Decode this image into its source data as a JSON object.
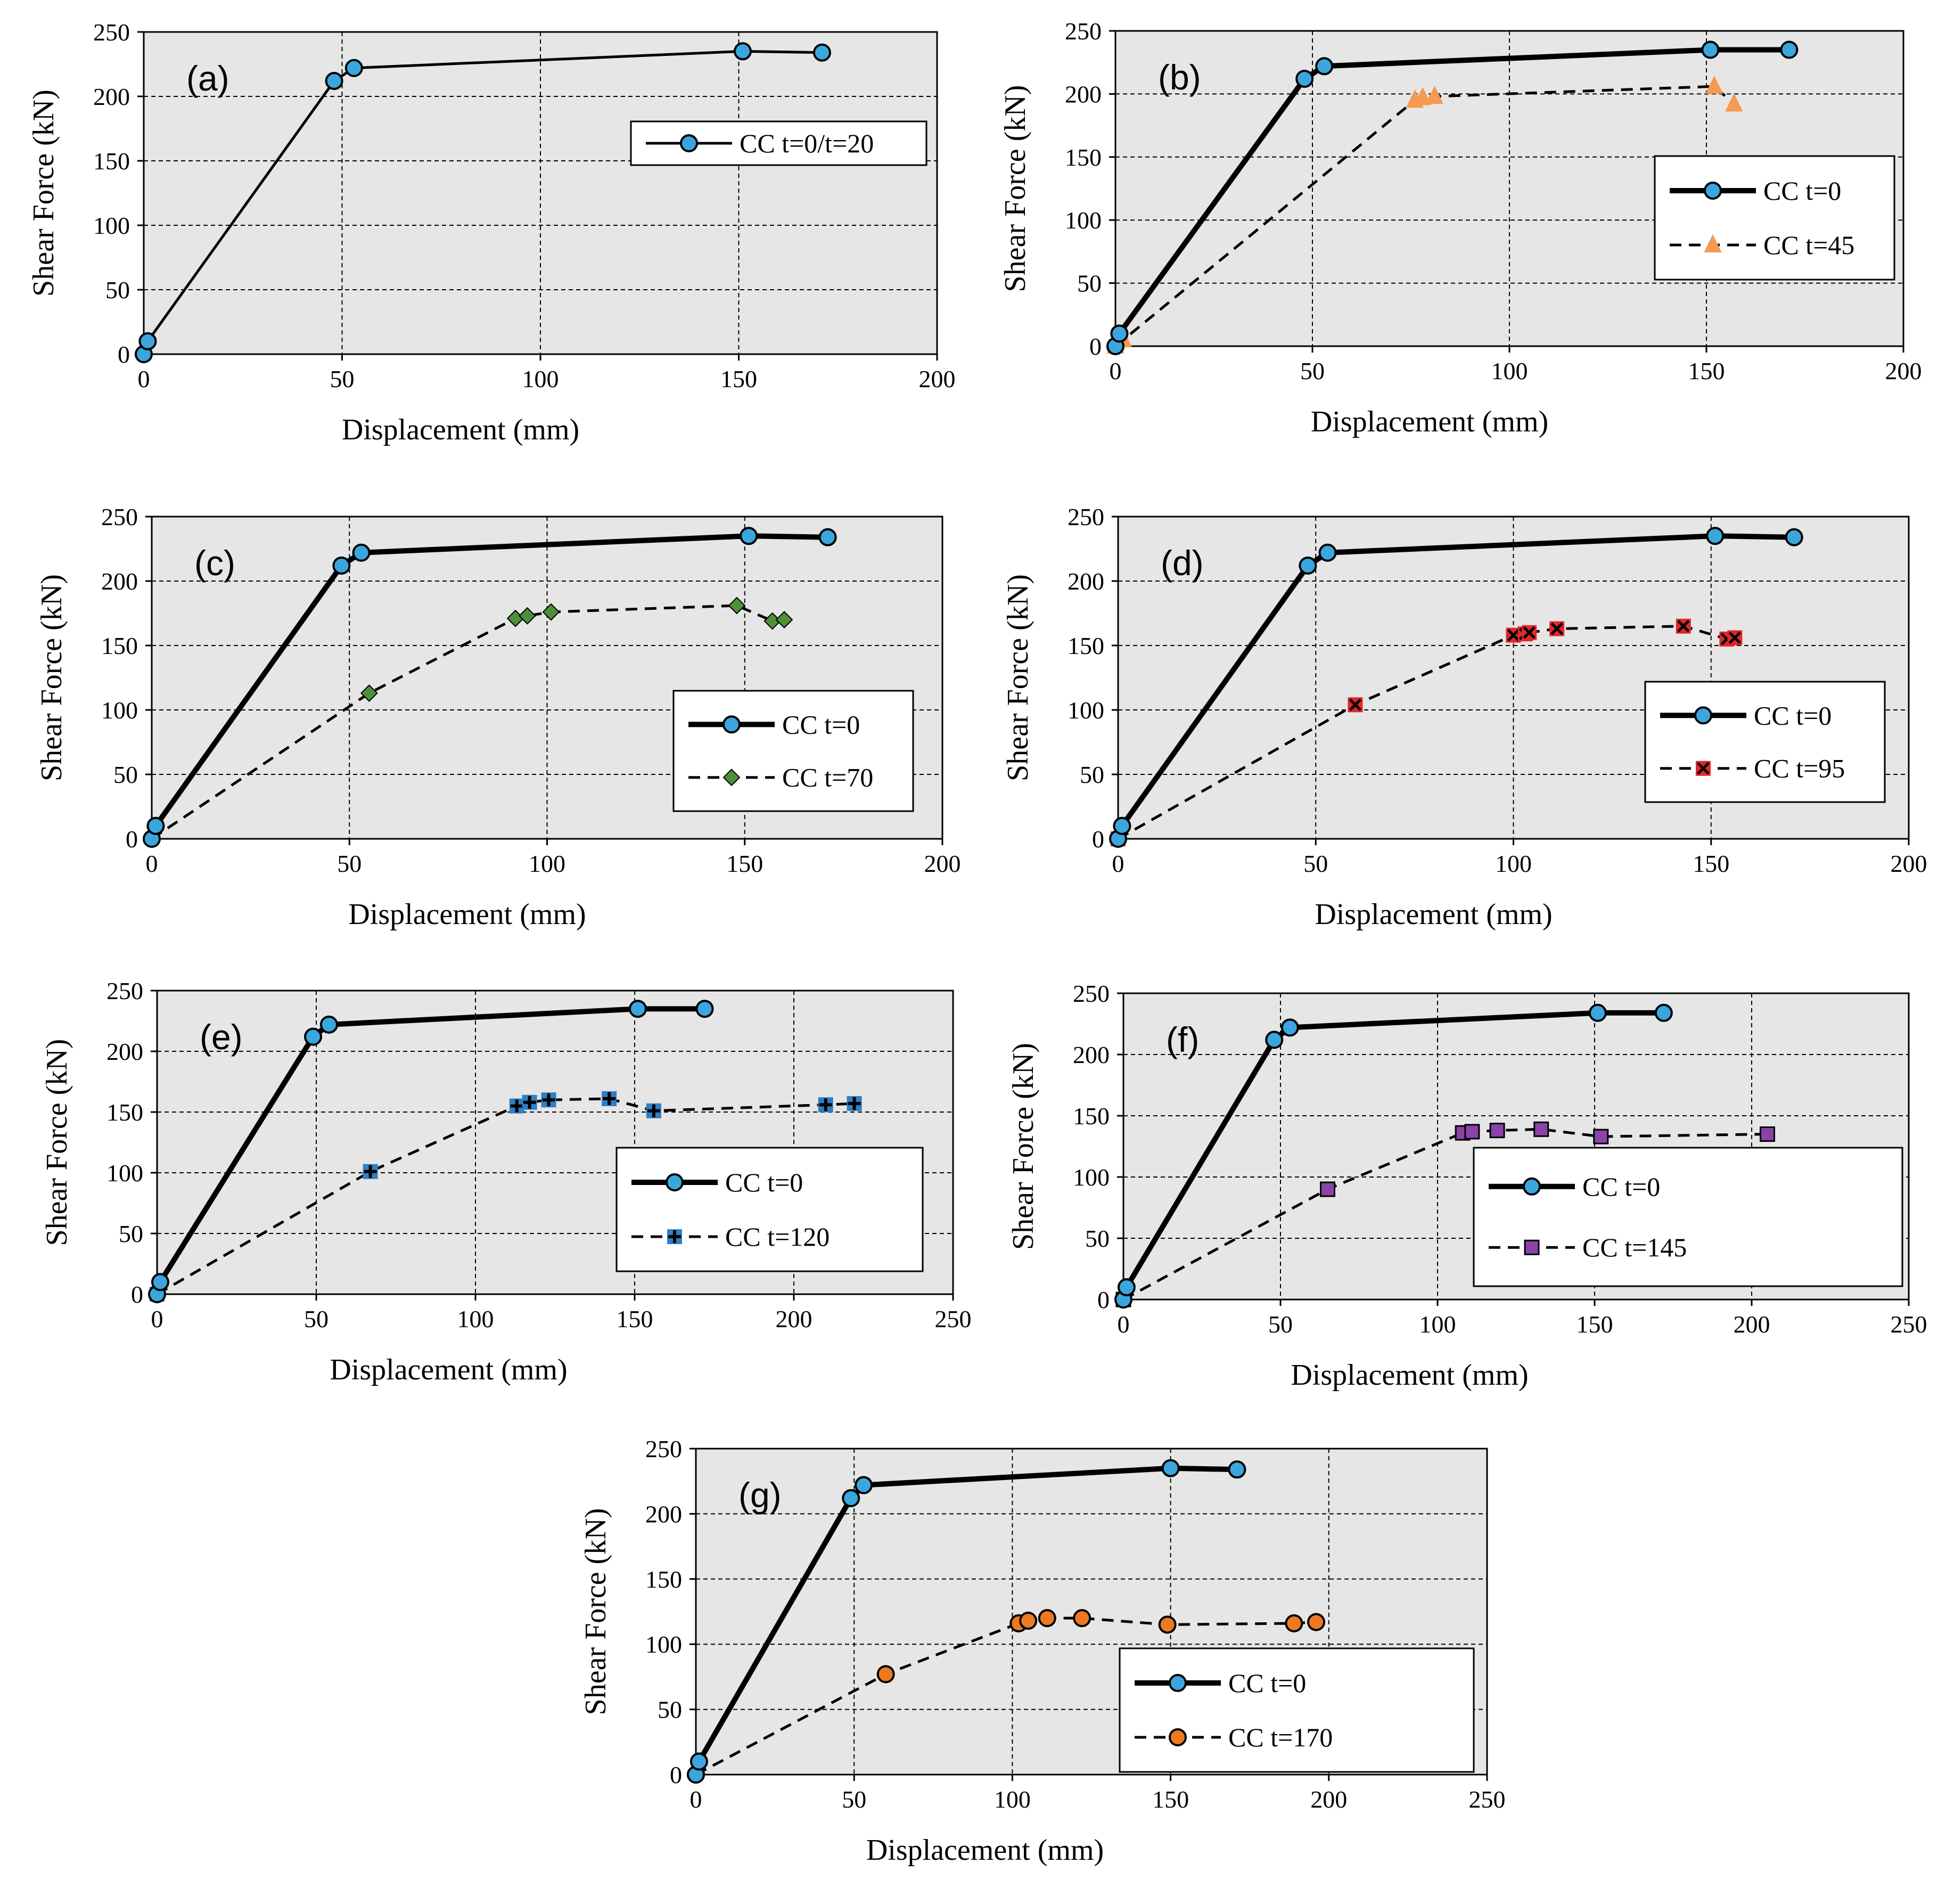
{
  "colors": {
    "plot_bg": "#e6e6e6",
    "grid": "#000000",
    "series_ref": "#000000",
    "marker_blue": "#3aa6dd",
    "triangle_orange": "#f59a50",
    "diamond_green": "#4e8f3a",
    "square_red": "#e3262b",
    "plus_blue": "#2f7fc4",
    "square_purple": "#8a43a6",
    "circle_orange": "#ec7a22"
  },
  "chart_data": [
    {
      "id": "a",
      "type": "line",
      "panel_label": "(a)",
      "xlabel": "Displacement (mm)",
      "ylabel": "Shear Force (kN)",
      "xlim": [
        0,
        200
      ],
      "ylim": [
        0,
        250
      ],
      "xticks": [
        0,
        50,
        100,
        150,
        200
      ],
      "yticks": [
        0,
        50,
        100,
        150,
        200,
        250
      ],
      "grid": true,
      "legend_position": "right",
      "series": [
        {
          "name": "CC t=0/t=20",
          "style": "solid-thin",
          "marker": "circle",
          "marker_color": "#3aa6dd",
          "icon": "circle-marker-icon",
          "x": [
            0,
            1,
            48,
            53,
            151,
            171
          ],
          "y": [
            0,
            10,
            212,
            222,
            235,
            234
          ]
        }
      ]
    },
    {
      "id": "b",
      "type": "line",
      "panel_label": "(b)",
      "xlabel": "Displacement (mm)",
      "ylabel": "Shear Force (kN)",
      "xlim": [
        0,
        200
      ],
      "ylim": [
        0,
        250
      ],
      "xticks": [
        0,
        50,
        100,
        150,
        200
      ],
      "yticks": [
        0,
        50,
        100,
        150,
        200,
        250
      ],
      "grid": true,
      "legend_position": "right",
      "series": [
        {
          "name": "CC t=0",
          "style": "solid-thick",
          "marker": "circle",
          "marker_color": "#3aa6dd",
          "icon": "circle-marker-icon",
          "x": [
            0,
            1,
            48,
            53,
            151,
            171
          ],
          "y": [
            0,
            10,
            212,
            222,
            235,
            235
          ]
        },
        {
          "name": "CC  t=45",
          "style": "dashed",
          "marker": "triangle",
          "marker_color": "#f59a50",
          "icon": "triangle-marker-icon",
          "x": [
            0,
            2,
            76,
            78,
            81,
            152,
            157
          ],
          "y": [
            0,
            5,
            195,
            197,
            198,
            206,
            192
          ]
        }
      ]
    },
    {
      "id": "c",
      "type": "line",
      "panel_label": "(c)",
      "xlabel": "Displacement (mm)",
      "ylabel": "Shear Force (kN)",
      "xlim": [
        0,
        200
      ],
      "ylim": [
        0,
        250
      ],
      "xticks": [
        0,
        50,
        100,
        150,
        200
      ],
      "yticks": [
        0,
        50,
        100,
        150,
        200,
        250
      ],
      "grid": true,
      "legend_position": "right",
      "series": [
        {
          "name": "CC t=0",
          "style": "solid-thick",
          "marker": "circle",
          "marker_color": "#3aa6dd",
          "icon": "circle-marker-icon",
          "x": [
            0,
            1,
            48,
            53,
            151,
            171
          ],
          "y": [
            0,
            10,
            212,
            222,
            235,
            234
          ]
        },
        {
          "name": "CC  t=70",
          "style": "dashed",
          "marker": "diamond",
          "marker_color": "#4e8f3a",
          "icon": "diamond-marker-icon",
          "x": [
            0,
            55,
            92,
            95,
            101,
            148,
            157,
            160
          ],
          "y": [
            0,
            113,
            171,
            173,
            176,
            181,
            169,
            170
          ]
        }
      ]
    },
    {
      "id": "d",
      "type": "line",
      "panel_label": "(d)",
      "xlabel": "Displacement (mm)",
      "ylabel": "Shear Force (kN)",
      "xlim": [
        0,
        200
      ],
      "ylim": [
        0,
        250
      ],
      "xticks": [
        0,
        50,
        100,
        150,
        200
      ],
      "yticks": [
        0,
        50,
        100,
        150,
        200,
        250
      ],
      "grid": true,
      "legend_position": "right",
      "series": [
        {
          "name": "CC t=0",
          "style": "solid-thick",
          "marker": "circle",
          "marker_color": "#3aa6dd",
          "icon": "circle-marker-icon",
          "x": [
            0,
            1,
            48,
            53,
            151,
            171
          ],
          "y": [
            0,
            10,
            212,
            222,
            235,
            234
          ]
        },
        {
          "name": "CC  t=95",
          "style": "dashed",
          "marker": "square-x",
          "marker_color": "#e3262b",
          "icon": "square-x-marker-icon",
          "x": [
            0,
            60,
            100,
            103,
            104,
            111,
            143,
            154,
            156
          ],
          "y": [
            0,
            104,
            158,
            159,
            160,
            163,
            165,
            155,
            156
          ]
        }
      ]
    },
    {
      "id": "e",
      "type": "line",
      "panel_label": "(e)",
      "xlabel": "Displacement (mm)",
      "ylabel": "Shear Force (kN)",
      "xlim": [
        0,
        250
      ],
      "ylim": [
        0,
        250
      ],
      "xticks": [
        0,
        50,
        100,
        150,
        200,
        250
      ],
      "yticks": [
        0,
        50,
        100,
        150,
        200,
        250
      ],
      "grid": true,
      "legend_position": "right",
      "series": [
        {
          "name": "CC t=0",
          "style": "solid-thick",
          "marker": "circle",
          "marker_color": "#3aa6dd",
          "icon": "circle-marker-icon",
          "x": [
            0,
            1,
            49,
            54,
            151,
            172
          ],
          "y": [
            0,
            10,
            212,
            222,
            235,
            235
          ]
        },
        {
          "name": "CC  t=120",
          "style": "dashed",
          "marker": "plus",
          "marker_color": "#2f7fc4",
          "icon": "plus-marker-icon",
          "x": [
            0,
            67,
            113,
            117,
            123,
            142,
            156,
            210,
            219
          ],
          "y": [
            0,
            101,
            155,
            158,
            160,
            161,
            151,
            156,
            157
          ]
        }
      ]
    },
    {
      "id": "f",
      "type": "line",
      "panel_label": "(f)",
      "xlabel": "Displacement (mm)",
      "ylabel": "Shear Force (kN)",
      "xlim": [
        0,
        250
      ],
      "ylim": [
        0,
        250
      ],
      "xticks": [
        0,
        50,
        100,
        150,
        200,
        250
      ],
      "yticks": [
        0,
        50,
        100,
        150,
        200,
        250
      ],
      "grid": true,
      "legend_position": "right",
      "series": [
        {
          "name": "CC t=0",
          "style": "solid-thick",
          "marker": "circle",
          "marker_color": "#3aa6dd",
          "icon": "circle-marker-icon",
          "x": [
            0,
            1,
            48,
            53,
            151,
            172
          ],
          "y": [
            0,
            10,
            212,
            222,
            234,
            234
          ]
        },
        {
          "name": "CC  t=145",
          "style": "dashed",
          "marker": "square",
          "marker_color": "#8a43a6",
          "icon": "square-marker-icon",
          "x": [
            0,
            65,
            108,
            111,
            119,
            133,
            152,
            205
          ],
          "y": [
            0,
            90,
            136,
            137,
            138,
            139,
            133,
            135
          ]
        }
      ]
    },
    {
      "id": "g",
      "type": "line",
      "panel_label": "(g)",
      "xlabel": "Displacement (mm)",
      "ylabel": "Shear Force (kN)",
      "xlim": [
        0,
        250
      ],
      "ylim": [
        0,
        250
      ],
      "xticks": [
        0,
        50,
        100,
        150,
        200,
        250
      ],
      "yticks": [
        0,
        50,
        100,
        150,
        200,
        250
      ],
      "grid": true,
      "legend_position": "right",
      "series": [
        {
          "name": "CC t=0",
          "style": "solid-thick",
          "marker": "circle",
          "marker_color": "#3aa6dd",
          "icon": "circle-marker-icon",
          "x": [
            0,
            1,
            49,
            53,
            150,
            171
          ],
          "y": [
            0,
            10,
            212,
            222,
            235,
            234
          ]
        },
        {
          "name": "CC  t=170",
          "style": "dashed",
          "marker": "circle",
          "marker_color": "#ec7a22",
          "icon": "circle-marker-icon",
          "x": [
            0,
            60,
            102,
            105,
            111,
            122,
            149,
            189,
            196
          ],
          "y": [
            0,
            77,
            116,
            118,
            120,
            120,
            115,
            116,
            117
          ]
        }
      ]
    }
  ]
}
